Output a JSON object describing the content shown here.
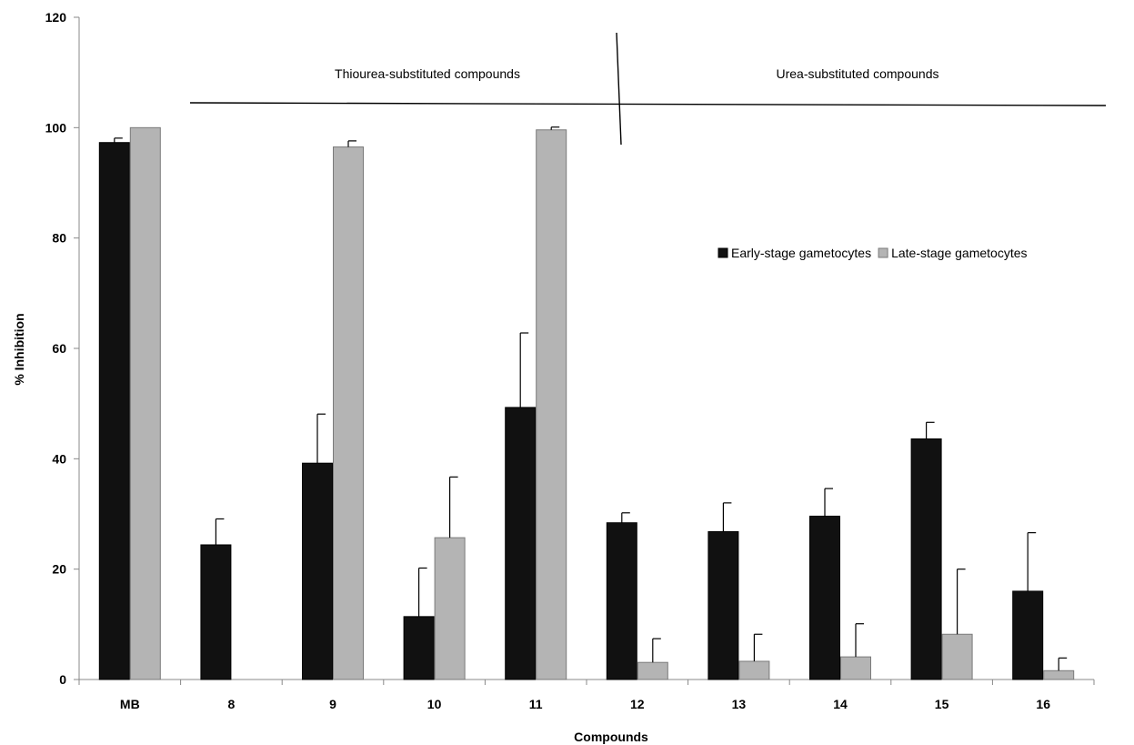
{
  "chart_data": {
    "type": "bar",
    "title": "",
    "xlabel": "Compounds",
    "ylabel": "% Inhibition",
    "ylim": [
      0,
      120
    ],
    "yticks": [
      0,
      20,
      40,
      60,
      80,
      100,
      120
    ],
    "grid": false,
    "legend_position": "right",
    "categories": [
      "MB",
      "8",
      "9",
      "10",
      "11",
      "12",
      "13",
      "14",
      "15",
      "16"
    ],
    "series": [
      {
        "name": "Early-stage gametocytes",
        "color": "#111111",
        "values": [
          97.3,
          24.4,
          39.2,
          11.4,
          49.3,
          28.4,
          26.8,
          29.6,
          43.6,
          16.0
        ],
        "errors": [
          0.8,
          4.7,
          8.9,
          8.8,
          13.5,
          1.8,
          5.2,
          5.0,
          3.0,
          10.6
        ]
      },
      {
        "name": "Late-stage gametocytes",
        "color": "#b4b4b4",
        "values": [
          100.0,
          0.0,
          96.5,
          25.7,
          99.6,
          3.1,
          3.3,
          4.1,
          8.2,
          1.6
        ],
        "errors": [
          0.0,
          0.0,
          1.1,
          11.0,
          0.5,
          4.3,
          4.9,
          6.0,
          11.8,
          2.3
        ]
      }
    ],
    "annotations": {
      "thiourea": "Thiourea-substituted compounds",
      "urea": "Urea-substituted compounds"
    }
  }
}
